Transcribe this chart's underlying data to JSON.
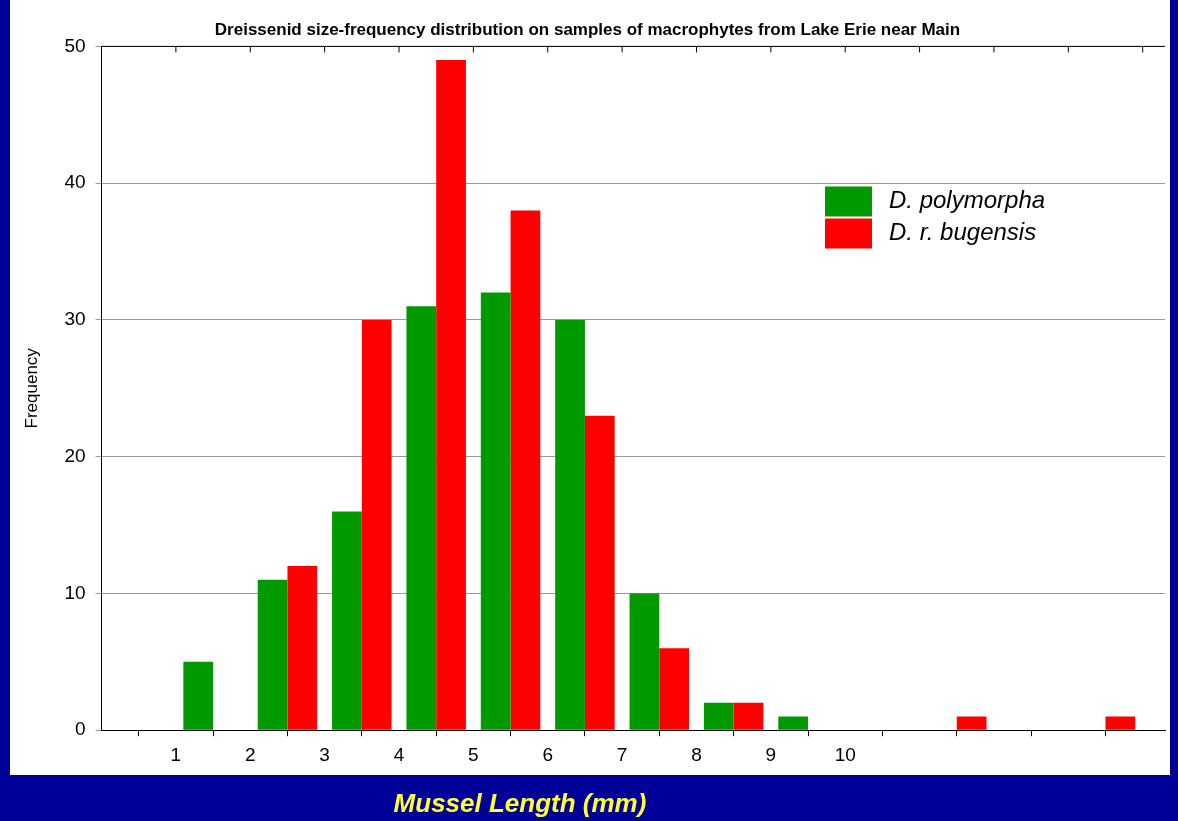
{
  "chart_data": {
    "type": "bar",
    "title": "Dreissenid size-frequency distribution on samples of macrophytes from Lake Erie near Main",
    "xlabel": "Mussel Length (mm)",
    "ylabel": "Frequency",
    "x": [
      1.5,
      2.5,
      3.5,
      4.5,
      5.5,
      6.5,
      7.5,
      8.5,
      9.5,
      10.5,
      11.5,
      12.5,
      13.5
    ],
    "series": [
      {
        "name": "D. polymorpha",
        "color": "#009900",
        "values": [
          5,
          11,
          16,
          31,
          32,
          30,
          10,
          2,
          1,
          0,
          0,
          0,
          0
        ]
      },
      {
        "name": "D. r. bugensis",
        "color": "#ff0000",
        "values": [
          0,
          12,
          30,
          49,
          38,
          23,
          6,
          2,
          0,
          0,
          1,
          0,
          1
        ]
      }
    ],
    "xlim": [
      0,
      14.3
    ],
    "xticks": [
      1,
      2,
      3,
      4,
      5,
      6,
      7,
      8,
      9,
      10,
      {
        "value": 11,
        "label": null
      },
      {
        "value": 12,
        "label": null
      },
      {
        "value": 13,
        "label": null
      },
      {
        "value": 14,
        "label": null
      }
    ],
    "ylim": [
      0,
      50
    ],
    "yticks": [
      0,
      10,
      20,
      30,
      40,
      50
    ],
    "grid": "y",
    "legend": "top right"
  }
}
